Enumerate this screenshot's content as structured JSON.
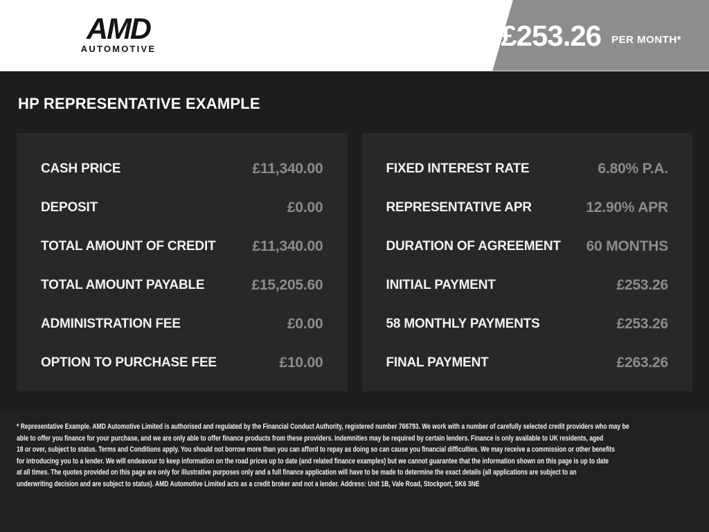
{
  "header": {
    "logo": {
      "brand": "AMD",
      "sub": "AUTOMOTIVE"
    },
    "price_banner": {
      "amount": "£253.26",
      "period": "PER MONTH*"
    }
  },
  "page_title": "HP REPRESENTATIVE EXAMPLE",
  "finance": {
    "left_panel": {
      "rows": [
        {
          "label": "CASH PRICE",
          "value": "£11,340.00"
        },
        {
          "label": "DEPOSIT",
          "value": "£0.00"
        },
        {
          "label": "TOTAL AMOUNT OF CREDIT",
          "value": "£11,340.00"
        },
        {
          "label": "TOTAL AMOUNT PAYABLE",
          "value": "£15,205.60"
        },
        {
          "label": "ADMINISTRATION FEE",
          "value": "£0.00"
        },
        {
          "label": "OPTION TO PURCHASE FEE",
          "value": "£10.00"
        }
      ]
    },
    "right_panel": {
      "rows": [
        {
          "label": "FIXED INTEREST RATE",
          "value": "6.80% P.A."
        },
        {
          "label": "REPRESENTATIVE APR",
          "value": "12.90% APR"
        },
        {
          "label": "DURATION OF AGREEMENT",
          "value": "60 MONTHS"
        },
        {
          "label": "INITIAL PAYMENT",
          "value": "£253.26"
        },
        {
          "label": "58 MONTHLY PAYMENTS",
          "value": "£253.26"
        },
        {
          "label": "FINAL PAYMENT",
          "value": "£263.26"
        }
      ]
    }
  },
  "footer": {
    "lines": [
      "* Representative Example. AMD Automotive Limited is authorised and regulated by the Financial Conduct Authority, registered number 766793. We work with a number of carefully selected credit providers who may be",
      "able to offer you finance for your purchase, and we are only able to offer finance products from these providers. Indemnities may be required by certain lenders. Finance is only available to UK residents, aged",
      "18 or over, subject to status. Terms and Conditions apply. You should not borrow more than you can afford to repay as doing so can cause you financial difficulties. We may receive a commission or other benefits",
      "for introducing you to a lender. We will endeavour to keep information on the road prices up to date (and related finance examples) but we cannot guarantee that the information shown on this page is up to date",
      "at all times. The quotes provided on this page are only for illustrative purposes only and a full finance application will have to be made to determine the exact details (all applications are subject to an",
      "underwriting decision and are subject to status). AMD Automotive Limited acts as a credit broker and not a lender. Address: Unit 1B, Vale Road, Stockport, SK6 3NE"
    ]
  },
  "colors": {
    "header_bg": "#ffffff",
    "banner_gray": "#8d8d8d",
    "body_bg": "#1d1d1d",
    "panel_bg": "#282828",
    "footer_bg": "#212121",
    "label_text": "#f2f2f2",
    "value_text": "#8c8c8c"
  }
}
